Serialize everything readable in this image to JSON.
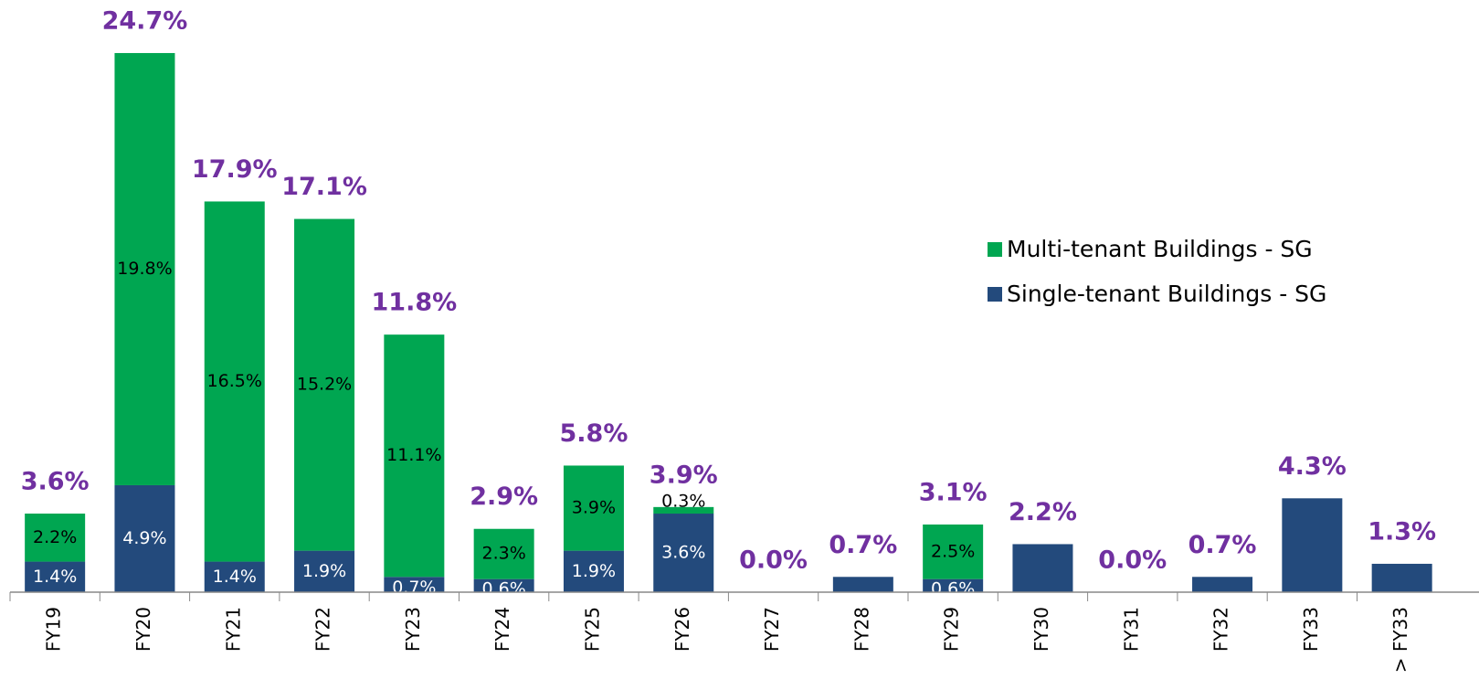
{
  "chart_data": {
    "type": "stacked_bar",
    "categories": [
      "FY19",
      "FY20",
      "FY21",
      "FY22",
      "FY23",
      "FY24",
      "FY25",
      "FY26",
      "FY27",
      "FY28",
      "FY29",
      "FY30",
      "FY31",
      "FY32",
      "FY33",
      "> FY33"
    ],
    "series": [
      {
        "name": "Single-tenant Buildings - SG",
        "color": "#234a7c",
        "values": [
          1.4,
          4.9,
          1.4,
          1.9,
          0.7,
          0.6,
          1.9,
          3.6,
          0,
          0.7,
          0.6,
          2.2,
          0,
          0.7,
          4.3,
          1.3
        ],
        "value_labels": [
          "1.4%",
          "4.9%",
          "1.4%",
          "1.9%",
          "0.7%",
          "0.6%",
          "1.9%",
          "3.6%",
          null,
          null,
          "0.6%",
          null,
          null,
          null,
          null,
          null
        ]
      },
      {
        "name": "Multi-tenant Buildings - SG",
        "color": "#00a651",
        "values": [
          2.2,
          19.8,
          16.5,
          15.2,
          11.1,
          2.3,
          3.9,
          0.3,
          0,
          0,
          2.5,
          0,
          0,
          0,
          0,
          0
        ],
        "value_labels": [
          "2.2%",
          "19.8%",
          "16.5%",
          "15.2%",
          "11.1%",
          "2.3%",
          "3.9%",
          "0.3%",
          null,
          null,
          "2.5%",
          null,
          null,
          null,
          null,
          null
        ]
      }
    ],
    "totals": [
      3.6,
      24.7,
      17.9,
      17.1,
      11.8,
      2.9,
      5.8,
      3.9,
      0.0,
      0.7,
      3.1,
      2.2,
      0.0,
      0.7,
      4.3,
      1.3
    ],
    "total_labels": [
      "3.6%",
      "24.7%",
      "17.9%",
      "17.1%",
      "11.8%",
      "2.9%",
      "5.8%",
      "3.9%",
      "0.0%",
      "0.7%",
      "3.1%",
      "2.2%",
      "0.0%",
      "0.7%",
      "4.3%",
      "1.3%"
    ],
    "ylim": [
      0,
      26
    ],
    "legend": "right"
  }
}
